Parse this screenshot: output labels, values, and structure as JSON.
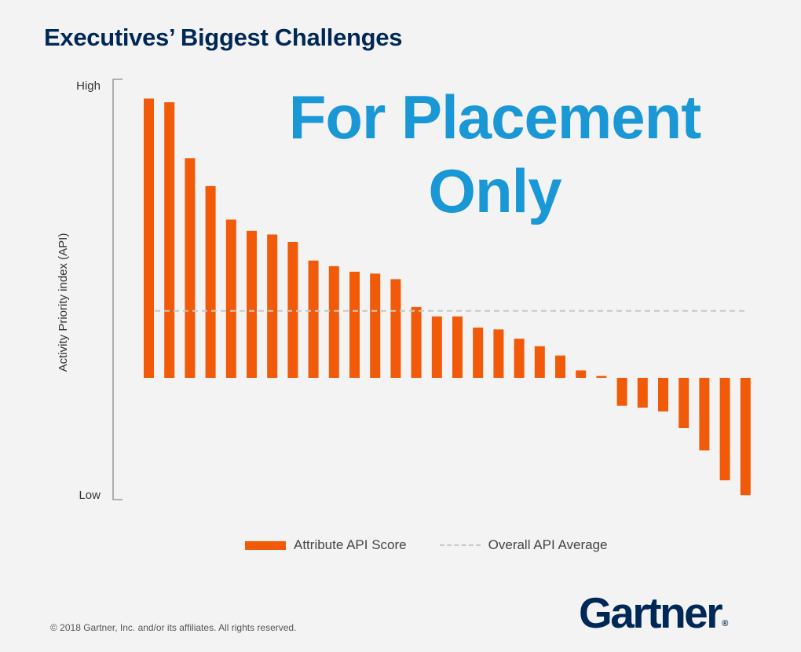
{
  "title": "Executives’ Biggest Challenges",
  "watermark": "For Placement Only",
  "chart_data": {
    "type": "bar",
    "ylabel": "Activity Priority index (API)",
    "y_tick_labels": {
      "high": "High",
      "low": "Low"
    },
    "ylim": [
      -64,
      160
    ],
    "values": [
      150,
      148,
      118,
      103,
      85,
      79,
      77,
      73,
      63,
      60,
      57,
      56,
      53,
      38,
      33,
      33,
      27,
      26,
      21,
      17,
      12,
      4,
      1,
      -15,
      -16,
      -18,
      -27,
      -39,
      -55,
      -63
    ],
    "average": 36,
    "legend": {
      "series": "Attribute API Score",
      "average": "Overall API Average"
    },
    "colors": {
      "bar": "#f05a08",
      "average": "#c8c8c8",
      "axis": "#888888"
    }
  },
  "footer": "© 2018 Gartner, Inc. and/or its affiliates. All rights reserved.",
  "logo": {
    "text": "Gartner",
    "mark": "®"
  }
}
